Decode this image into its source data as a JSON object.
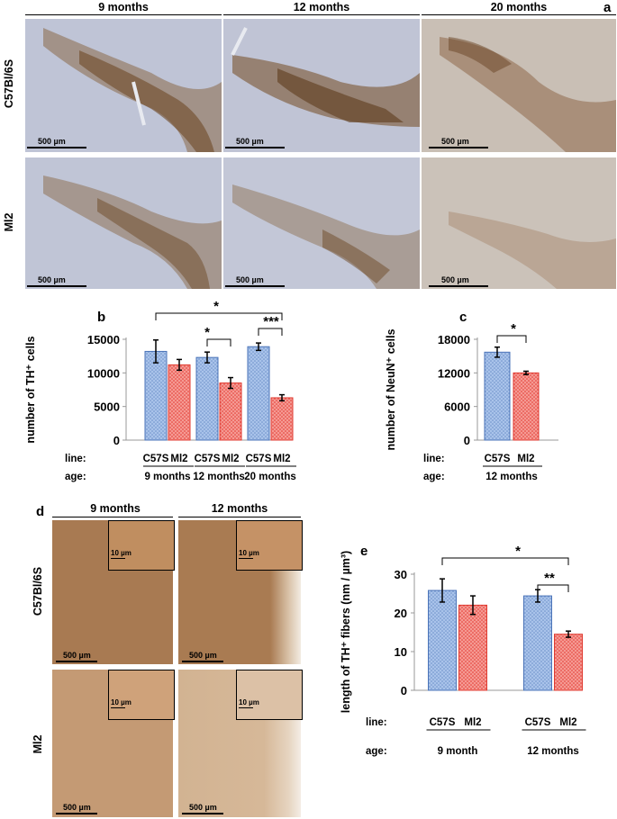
{
  "panel_a": {
    "letter": "a",
    "columns": [
      "9 months",
      "12 months",
      "20 months"
    ],
    "rows": [
      "C57Bl/6S",
      "Ml2"
    ],
    "scale_label": "500 µm"
  },
  "panel_d": {
    "letter": "d",
    "columns": [
      "9 months",
      "12 months"
    ],
    "rows": [
      "C57Bl/6S",
      "Ml2"
    ],
    "scale_label": "500 µm",
    "inset_scale_label": "10 µm"
  },
  "chart_data": [
    {
      "panel": "b",
      "type": "bar",
      "ylabel": "number of TH⁺ cells",
      "ylim": [
        0,
        15000
      ],
      "yticks": [
        "0",
        "5000",
        "10000",
        "15000"
      ],
      "groups": [
        "9 months",
        "12 months",
        "20 months"
      ],
      "bar_labels": [
        "C57S",
        "Ml2"
      ],
      "series": [
        {
          "name": "C57S",
          "values": [
            13200,
            12300,
            13900
          ],
          "errors": [
            1700,
            800,
            550
          ],
          "color": "#9db8e3"
        },
        {
          "name": "Ml2",
          "values": [
            11200,
            8500,
            6300
          ],
          "errors": [
            800,
            800,
            450
          ],
          "color": "#f08a84"
        }
      ],
      "row_labels": {
        "line": "line:",
        "age": "age:"
      },
      "significance": [
        {
          "label": "*",
          "between": "C57S 9 months – Ml2 20 months"
        },
        {
          "label": "*",
          "between": "C57S 12 months – Ml2 12 months"
        },
        {
          "label": "***",
          "between": "C57S 20 months – Ml2 20 months"
        }
      ]
    },
    {
      "panel": "c",
      "type": "bar",
      "ylabel": "number of NeuN⁺ cells",
      "ylim": [
        0,
        18000
      ],
      "yticks": [
        "0",
        "6000",
        "12000",
        "18000"
      ],
      "groups": [
        "12 months"
      ],
      "bar_labels": [
        "C57S",
        "Ml2"
      ],
      "series": [
        {
          "name": "C57S",
          "values": [
            15700
          ],
          "errors": [
            900
          ],
          "color": "#9db8e3"
        },
        {
          "name": "Ml2",
          "values": [
            12000
          ],
          "errors": [
            300
          ],
          "color": "#f08a84"
        }
      ],
      "row_labels": {
        "line": "line:",
        "age": "age:"
      },
      "significance": [
        {
          "label": "*",
          "between": "C57S – Ml2"
        }
      ]
    },
    {
      "panel": "e",
      "type": "bar",
      "ylabel": "length of TH⁺ fibers (nm / µm³)",
      "ylim": [
        0,
        30
      ],
      "yticks": [
        "0",
        "10",
        "20",
        "30"
      ],
      "groups": [
        "9 month",
        "12 months"
      ],
      "bar_labels": [
        "C57S",
        "Ml2"
      ],
      "series": [
        {
          "name": "C57S",
          "values": [
            25.8,
            24.4
          ],
          "errors": [
            3.0,
            1.6
          ],
          "color": "#9db8e3"
        },
        {
          "name": "Ml2",
          "values": [
            22.0,
            14.5
          ],
          "errors": [
            2.4,
            0.8
          ],
          "color": "#f08a84"
        }
      ],
      "row_labels": {
        "line": "line:",
        "age": "age:"
      },
      "significance": [
        {
          "label": "*",
          "between": "C57S 9 month – Ml2 12 months"
        },
        {
          "label": "**",
          "between": "C57S 12 months – Ml2 12 months"
        }
      ]
    }
  ]
}
